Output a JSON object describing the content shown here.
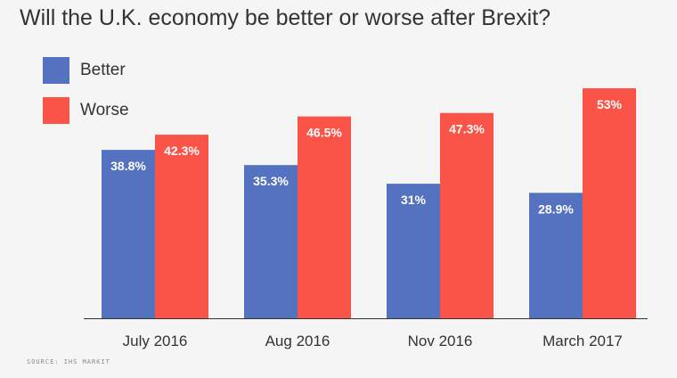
{
  "title": "Will the U.K. economy be better or worse after Brexit?",
  "source": "SOURCE: IHS MARKIT",
  "colors": {
    "better": "#5472c0",
    "worse": "#fa5448",
    "background": "#f5f5f5",
    "axis": "#333333"
  },
  "legend": {
    "placement": "top-left",
    "items": [
      {
        "label": "Better",
        "color": "#5472c0"
      },
      {
        "label": "Worse",
        "color": "#fa5448"
      }
    ]
  },
  "chart_data": {
    "type": "bar",
    "title": "Will the U.K. economy be better or worse after Brexit?",
    "categories": [
      "July 2016",
      "Aug 2016",
      "Nov 2016",
      "March 2017"
    ],
    "series": [
      {
        "name": "Better",
        "values": [
          38.8,
          35.3,
          31,
          28.9
        ],
        "labels": [
          "38.8%",
          "35.3%",
          "31%",
          "28.9%"
        ]
      },
      {
        "name": "Worse",
        "values": [
          42.3,
          46.5,
          47.3,
          53
        ],
        "labels": [
          "42.3%",
          "46.5%",
          "47.3%",
          "53%"
        ]
      }
    ],
    "xlabel": "",
    "ylabel": "",
    "ylim": [
      0,
      53
    ],
    "grid": false,
    "legend": "top-left"
  }
}
